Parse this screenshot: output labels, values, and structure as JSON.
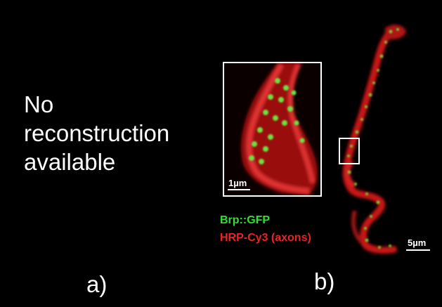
{
  "panel_a": {
    "lines": [
      "No",
      "reconstruction",
      "available"
    ],
    "caption": "a)"
  },
  "panel_b": {
    "caption": "b)",
    "inset_scale": "1µm",
    "main_scale": "5µm",
    "legend": [
      {
        "label": "Brp::GFP",
        "color": "#33dd33"
      },
      {
        "label": "HRP-Cy3 (axons)",
        "color": "#ee2222"
      }
    ]
  }
}
